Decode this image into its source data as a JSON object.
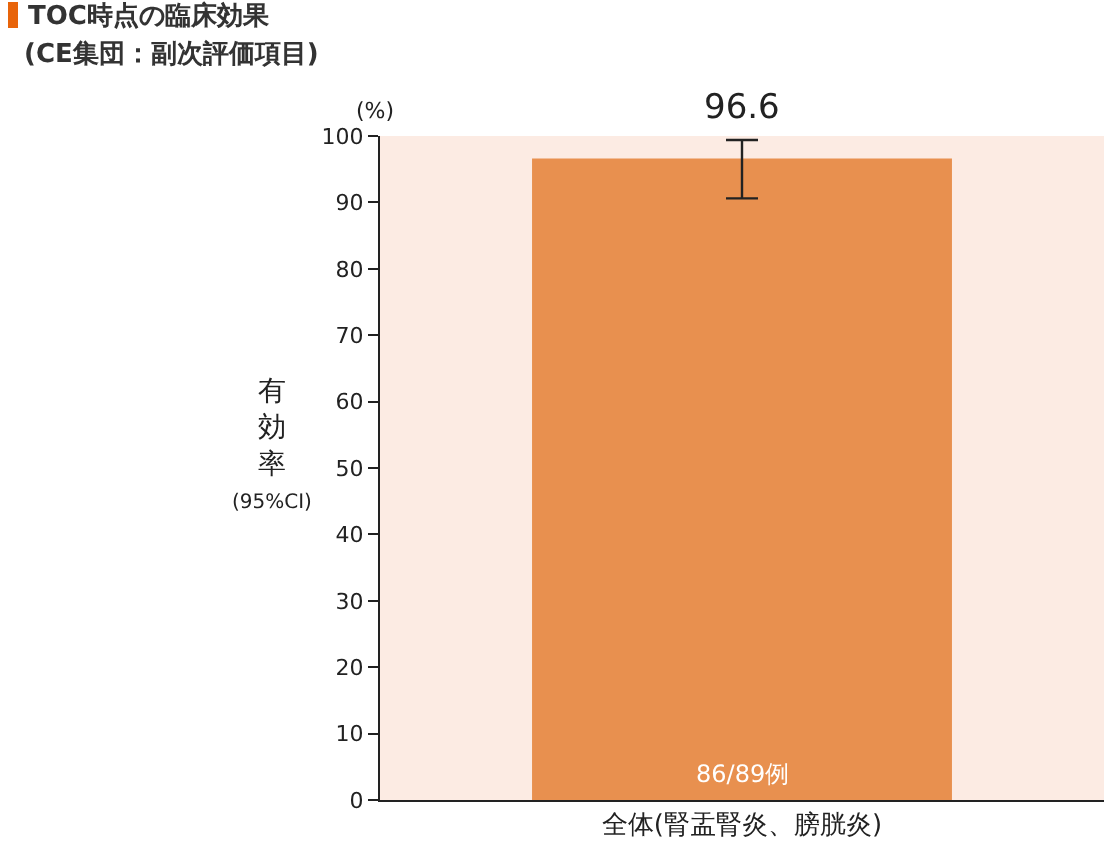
{
  "chart_data": {
    "type": "bar",
    "title": "TOC時点の臨床効果",
    "subtitle": "(CE集団：副次評価項目)",
    "ylabel": "有効率",
    "categories": [
      "全体(腎盂腎炎、膀胱炎)"
    ],
    "values": [
      96.6
    ],
    "color": "#e8904f",
    "value_labels": [
      "96.6"
    ],
    "errors": [
      [
        90.6,
        99.4
      ]
    ],
    "annotations": [
      "(%)",
      "(95%CI)",
      "86/89例"
    ],
    "ylim": [
      0,
      100
    ],
    "yticks": [
      0,
      10,
      20,
      30,
      40,
      50,
      60,
      70,
      80,
      90,
      100
    ],
    "grid": false,
    "legend": false
  }
}
